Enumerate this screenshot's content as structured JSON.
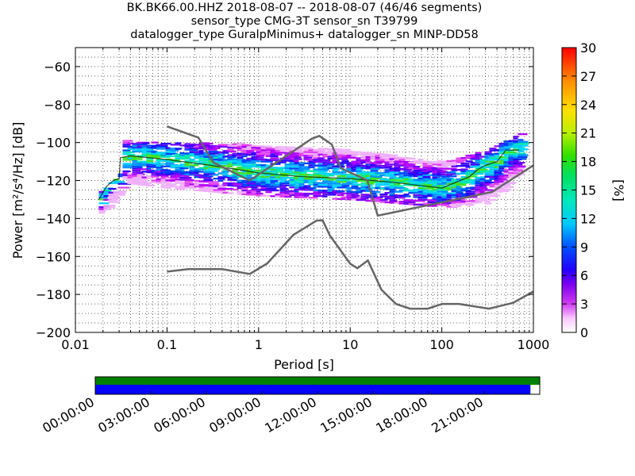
{
  "title_lines": [
    "BK.BK66.00.HHZ   2018-08-07 -- 2018-08-07  (46/46 segments)",
    "sensor_type CMG-3T sensor_sn T39799",
    "datalogger_type GuralpMinimus+ datalogger_sn MINP-DD58"
  ],
  "chart_data": {
    "type": "heatmap",
    "title": "BK.BK66.00.HHZ   2018-08-07 -- 2018-08-07  (46/46 segments)",
    "subtitle": [
      "sensor_type CMG-3T sensor_sn T39799",
      "datalogger_type GuralpMinimus+ datalogger_sn MINP-DD58"
    ],
    "xlabel": "Period [s]",
    "ylabel": "Power [m²/s⁴/Hz] [dB]",
    "x_scale": "log",
    "xlim": [
      0.01,
      1000
    ],
    "ylim": [
      -200,
      -50
    ],
    "x_ticks": [
      0.01,
      0.1,
      1,
      10,
      100,
      1000
    ],
    "x_tick_labels": [
      "0.01",
      "0.1",
      "1",
      "10",
      "100",
      "1000"
    ],
    "y_ticks": [
      -200,
      -180,
      -160,
      -140,
      -120,
      -100,
      -80,
      -60
    ],
    "y_tick_labels": [
      "−200",
      "−180",
      "−160",
      "−140",
      "−120",
      "−100",
      "−80",
      "−60"
    ],
    "grid": true,
    "colorbar": {
      "label": "[%]",
      "range": [
        0,
        30
      ],
      "ticks": [
        0,
        3,
        6,
        9,
        12,
        15,
        18,
        21,
        24,
        27,
        30
      ],
      "tick_labels": [
        "0",
        "3",
        "6",
        "9",
        "12",
        "15",
        "18",
        "21",
        "24",
        "27",
        "30"
      ]
    },
    "noise_model_high": {
      "x": [
        0.1,
        0.22,
        0.32,
        0.8,
        3.8,
        4.6,
        6.3,
        7.9,
        15.4,
        20,
        354.8,
        1000
      ],
      "y": [
        -91.5,
        -97.4,
        -110.5,
        -120,
        -98,
        -96.5,
        -101,
        -113.5,
        -120,
        -138.5,
        -126,
        -112
      ]
    },
    "noise_model_low": {
      "x": [
        0.1,
        0.17,
        0.4,
        0.8,
        1.24,
        2.4,
        4.3,
        5.0,
        6.0,
        10.0,
        12.0,
        15.6,
        21.9,
        31.6,
        45.0,
        70.0,
        101.0,
        154.0,
        328.0,
        600.0,
        1000.0
      ],
      "y": [
        -168,
        -166.7,
        -166.7,
        -169.2,
        -163.7,
        -148.6,
        -141.1,
        -141,
        -149,
        -163.8,
        -166.2,
        -162.1,
        -177.5,
        -185,
        -187.5,
        -187.5,
        -185,
        -185,
        -187.5,
        -184.4,
        -178.5
      ]
    },
    "mode_line": {
      "x": [
        0.018,
        0.022,
        0.026,
        0.03,
        0.031,
        0.04,
        0.1,
        0.3,
        1,
        3,
        10,
        30,
        100,
        200,
        250,
        300,
        400,
        500,
        700
      ],
      "y": [
        -130,
        -123,
        -120,
        -119,
        -108,
        -107,
        -109,
        -112,
        -116,
        -118,
        -119,
        -121,
        -124,
        -118,
        -114,
        -112,
        -110,
        -104,
        -104
      ]
    },
    "density_bands": [
      {
        "x": [
          0.018,
          0.03,
          0.031,
          0.1,
          1,
          10,
          100,
          300,
          700
        ],
        "y_top": [
          -126,
          -116,
          -99,
          -100,
          -101,
          -104,
          -110,
          -104,
          -95
        ],
        "y_bottom": [
          -138,
          -126,
          -121,
          -124,
          -128,
          -130,
          -134,
          -132,
          -116
        ]
      }
    ]
  },
  "timeline": {
    "labels": [
      "00:00:00",
      "03:00:00",
      "06:00:00",
      "09:00:00",
      "12:00:00",
      "15:00:00",
      "18:00:00",
      "21:00:00"
    ],
    "green_coverage": 1.0,
    "blue_coverage": 0.979
  },
  "colors": {
    "noise_model": "#666666",
    "mode_line": "#000000",
    "timeline_green": "#008000",
    "timeline_blue": "#0000ff"
  }
}
